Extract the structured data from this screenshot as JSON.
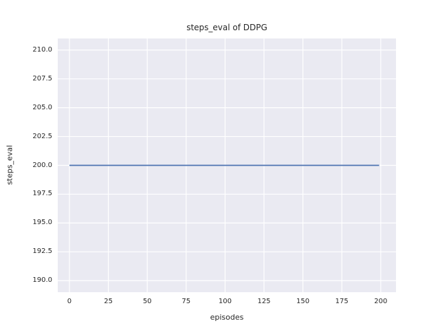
{
  "chart_data": {
    "type": "line",
    "title": "steps_eval of DDPG",
    "xlabel": "episodes",
    "ylabel": "steps_eval",
    "x_ticks": [
      0,
      25,
      50,
      75,
      100,
      125,
      150,
      175,
      200
    ],
    "x_tick_labels": [
      "0",
      "25",
      "50",
      "75",
      "100",
      "125",
      "150",
      "175",
      "200"
    ],
    "y_ticks": [
      190.0,
      192.5,
      195.0,
      197.5,
      200.0,
      202.5,
      205.0,
      207.5,
      210.0
    ],
    "y_tick_labels": [
      "190.0",
      "192.5",
      "195.0",
      "197.5",
      "200.0",
      "202.5",
      "205.0",
      "207.5",
      "210.0"
    ],
    "xlim": [
      -7.5,
      209.8
    ],
    "ylim": [
      189.0,
      211.0
    ],
    "grid": true,
    "legend_position": "none",
    "series": [
      {
        "name": "steps_eval",
        "x": [
          0,
          199
        ],
        "y": [
          200.0,
          200.0
        ],
        "color": "#4c72b0",
        "linewidth": 1.8,
        "note": "constant value 200 for every episode from 0 to 199"
      }
    ],
    "style": {
      "figure_bg": "#ffffff",
      "plot_bg": "#eaeaf2",
      "grid_color": "#ffffff",
      "text_color": "#262626"
    }
  }
}
